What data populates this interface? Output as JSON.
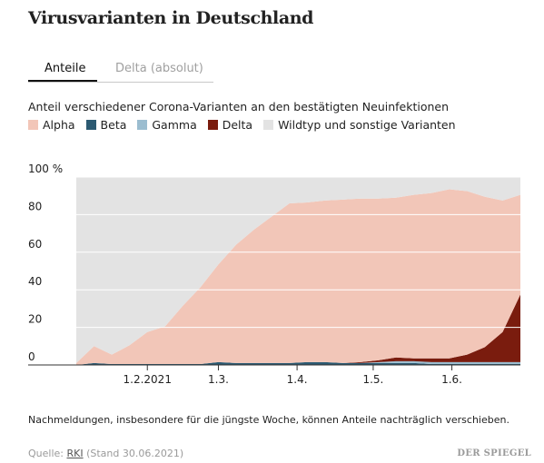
{
  "headline": "Virusvarianten in Deutschland",
  "tabs": [
    {
      "label": "Anteile",
      "active": true
    },
    {
      "label": "Delta (absolut)",
      "active": false
    }
  ],
  "subtitle": "Anteil verschiedener Corona-Varianten an den bestätigten Neuinfektionen",
  "legend": [
    {
      "label": "Alpha",
      "color": "#f2c6b8"
    },
    {
      "label": "Beta",
      "color": "#2c5a72"
    },
    {
      "label": "Gamma",
      "color": "#9bbdd0"
    },
    {
      "label": "Delta",
      "color": "#7a1c0e"
    },
    {
      "label": "Wildtyp und sonstige Varianten",
      "color": "#e3e3e3"
    }
  ],
  "chart_data": {
    "type": "area",
    "stacked": true,
    "x": [
      "2021-01-04",
      "2021-01-11",
      "2021-01-18",
      "2021-01-25",
      "2021-02-01",
      "2021-02-08",
      "2021-02-15",
      "2021-02-22",
      "2021-03-01",
      "2021-03-08",
      "2021-03-15",
      "2021-03-22",
      "2021-03-29",
      "2021-04-05",
      "2021-04-12",
      "2021-04-19",
      "2021-04-26",
      "2021-05-03",
      "2021-05-10",
      "2021-05-17",
      "2021-05-24",
      "2021-05-31",
      "2021-06-07",
      "2021-06-14",
      "2021-06-21",
      "2021-06-28"
    ],
    "series": [
      {
        "name": "Beta",
        "color": "#2c5a72",
        "values": [
          0,
          1,
          0.5,
          0.5,
          0.5,
          0.5,
          0.5,
          0.5,
          1.5,
          1,
          1,
          1,
          1,
          1.5,
          1.5,
          1,
          1,
          1,
          1,
          1,
          0.5,
          0.5,
          0.5,
          0.5,
          0.5,
          0.5
        ]
      },
      {
        "name": "Gamma",
        "color": "#9bbdd0",
        "values": [
          0,
          0,
          0,
          0,
          0,
          0,
          0,
          0,
          0,
          0,
          0,
          0,
          0,
          0,
          0,
          0,
          0,
          0.5,
          1,
          1,
          1,
          1,
          1,
          1,
          1,
          1
        ]
      },
      {
        "name": "Delta",
        "color": "#7a1c0e",
        "values": [
          0,
          0,
          0,
          0,
          0,
          0,
          0,
          0,
          0,
          0,
          0,
          0,
          0,
          0,
          0,
          0,
          0.5,
          1,
          2,
          1.5,
          2,
          2,
          4,
          8,
          16,
          36
        ]
      },
      {
        "name": "Alpha",
        "color": "#f2c6b8",
        "values": [
          1,
          9,
          5,
          10,
          17,
          20,
          31,
          41,
          52,
          63,
          71,
          78,
          85,
          85,
          86,
          87,
          87,
          86,
          85,
          87,
          88,
          90,
          87,
          80,
          70,
          53
        ]
      },
      {
        "name": "Wildtyp und sonstige Varianten",
        "color": "#e3e3e3",
        "values": [
          99,
          90,
          94.5,
          89.5,
          82.5,
          79.5,
          68.5,
          58.5,
          46.5,
          36,
          28,
          21,
          14,
          13.5,
          12.5,
          12,
          11.5,
          11.5,
          11,
          9.5,
          8.5,
          6.5,
          7.5,
          10.5,
          12.5,
          9.5
        ]
      }
    ],
    "x_ticks": [
      {
        "date": "2021-02-01",
        "label": "1.2.2021"
      },
      {
        "date": "2021-03-01",
        "label": "1.3."
      },
      {
        "date": "2021-04-01",
        "label": "1.4."
      },
      {
        "date": "2021-05-01",
        "label": "1.5."
      },
      {
        "date": "2021-06-01",
        "label": "1.6."
      }
    ],
    "y_ticks": [
      {
        "value": 0,
        "label": "0"
      },
      {
        "value": 20,
        "label": "20"
      },
      {
        "value": 40,
        "label": "40"
      },
      {
        "value": 60,
        "label": "60"
      },
      {
        "value": 80,
        "label": "80"
      },
      {
        "value": 100,
        "label": "100 %"
      }
    ],
    "ylim": [
      0,
      100
    ],
    "grid": true
  },
  "note": "Nachmeldungen, insbesondere für die jüngste Woche, können Anteile nachträglich verschieben.",
  "source": {
    "prefix": "Quelle:",
    "name": "RKI",
    "stand": "(Stand 30.06.2021)"
  },
  "brand": "DER SPIEGEL"
}
